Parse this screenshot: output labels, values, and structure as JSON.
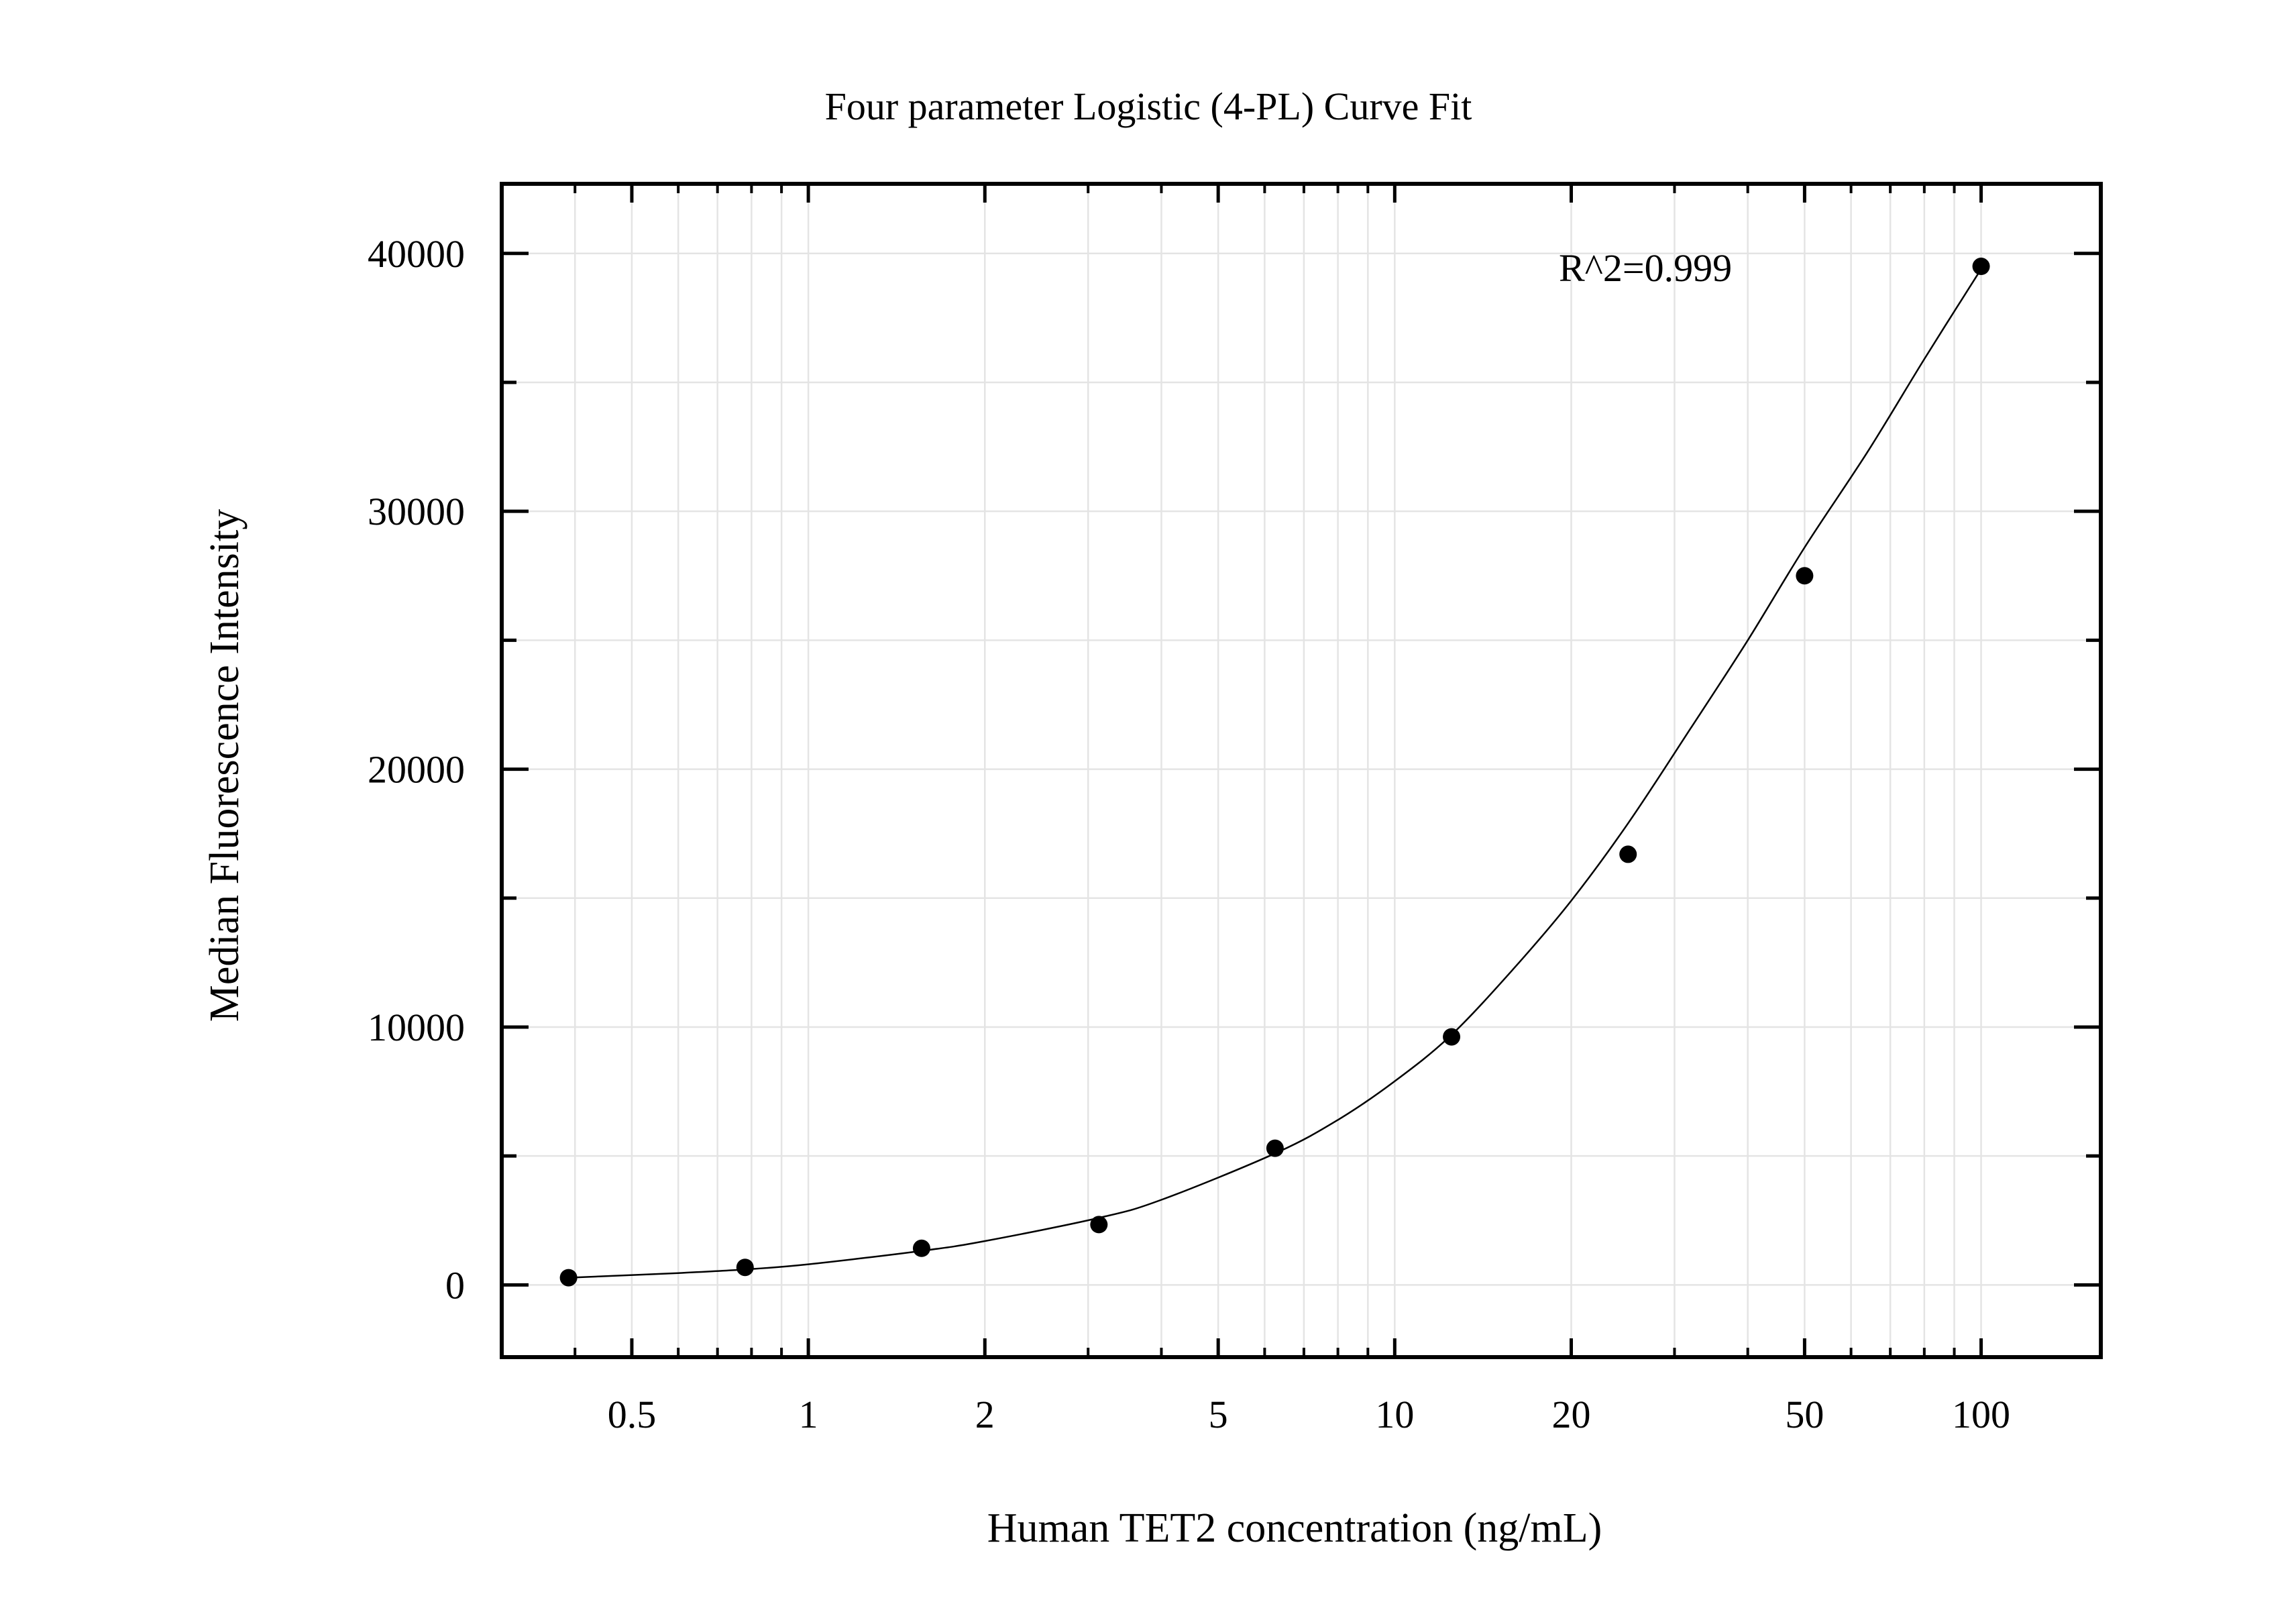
{
  "chart_data": {
    "type": "scatter",
    "title": "Four parameter Logistic (4-PL) Curve Fit",
    "xlabel": "Human TET2 concentration (ng/mL)",
    "ylabel": "Median Fluorescence Intensity",
    "x_scale": "log",
    "xlim": [
      0.3,
      160
    ],
    "ylim": [
      -2800,
      42700
    ],
    "x_ticks": [
      0.5,
      1,
      2,
      5,
      10,
      20,
      50,
      100
    ],
    "x_tick_labels": [
      "0.5",
      "1",
      "2",
      "5",
      "10",
      "20",
      "50",
      "100"
    ],
    "y_ticks": [
      0,
      10000,
      20000,
      30000,
      40000
    ],
    "y_tick_labels": [
      "0",
      "10000",
      "20000",
      "30000",
      "40000"
    ],
    "grid": true,
    "annotation": "R^2=0.999",
    "series": [
      {
        "kind": "points",
        "x": [
          0.39,
          0.78,
          1.56,
          3.13,
          6.25,
          12.5,
          25,
          50,
          100
        ],
        "y": [
          280,
          680,
          1420,
          2340,
          5300,
          9620,
          16700,
          27500,
          39500
        ]
      },
      {
        "kind": "fitted-curve",
        "model": "4PL",
        "x": [
          0.39,
          0.6,
          0.78,
          1.0,
          1.56,
          2.0,
          3.13,
          4.0,
          6.25,
          8.0,
          10,
          12.5,
          16,
          20,
          25,
          32,
          40,
          50,
          64,
          80,
          100
        ],
        "y": [
          280,
          460,
          600,
          800,
          1320,
          1700,
          2600,
          3300,
          5100,
          6400,
          7900,
          9700,
          12300,
          14900,
          17900,
          21600,
          25000,
          28600,
          32300,
          35900,
          39400
        ]
      }
    ]
  }
}
